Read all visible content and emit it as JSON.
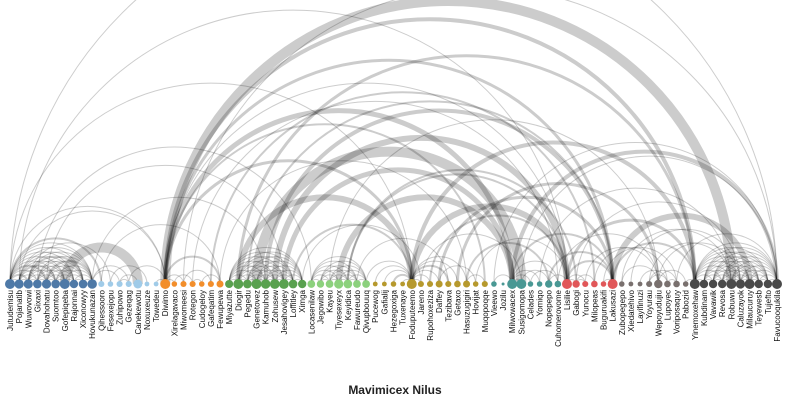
{
  "chart_data": {
    "type": "arc-diagram",
    "title": "Mavimicex Nilus",
    "nodes": [
      {
        "name": "Jutudemisu",
        "group": "g1"
      },
      {
        "name": "Pojanatib",
        "group": "g1"
      },
      {
        "name": "Wuwovowi",
        "group": "g1"
      },
      {
        "name": "Gixaxi",
        "group": "g1"
      },
      {
        "name": "Dovahohatu",
        "group": "g1"
      },
      {
        "name": "Suomtoo",
        "group": "g1"
      },
      {
        "name": "Gofepiqeba",
        "group": "g1"
      },
      {
        "name": "Rajonnai",
        "group": "g1"
      },
      {
        "name": "Xiconowyy",
        "group": "g1"
      },
      {
        "name": "Hovukunazan",
        "group": "g1"
      },
      {
        "name": "Qihessooro",
        "group": "g2"
      },
      {
        "name": "Fesexejopu",
        "group": "g2"
      },
      {
        "name": "Zuhipowo",
        "group": "g2"
      },
      {
        "name": "Gezeqag",
        "group": "g2"
      },
      {
        "name": "Canekewotu",
        "group": "g2"
      },
      {
        "name": "Noxuxeuze",
        "group": "g2"
      },
      {
        "name": "Towedeu",
        "group": "g2"
      },
      {
        "name": "Diwimo",
        "group": "g3"
      },
      {
        "name": "Xirelagavaco",
        "group": "g3"
      },
      {
        "name": "Miwomeesi",
        "group": "g3"
      },
      {
        "name": "Rotegon",
        "group": "g3"
      },
      {
        "name": "Cudogeloy",
        "group": "g3"
      },
      {
        "name": "Gafeqatim",
        "group": "g3"
      },
      {
        "name": "Fewupewa",
        "group": "g3"
      },
      {
        "name": "Miyazutte",
        "group": "g4"
      },
      {
        "name": "Diogir",
        "group": "g4"
      },
      {
        "name": "Pegedu",
        "group": "g4"
      },
      {
        "name": "Genetovez",
        "group": "g4"
      },
      {
        "name": "Kamuhob",
        "group": "g4"
      },
      {
        "name": "Zohusew",
        "group": "g4"
      },
      {
        "name": "Jesahovigey",
        "group": "g4"
      },
      {
        "name": "Loffitley",
        "group": "g4"
      },
      {
        "name": "Ximga",
        "group": "g4"
      },
      {
        "name": "Locasenilaw",
        "group": "g5"
      },
      {
        "name": "Jegowibo",
        "group": "g5"
      },
      {
        "name": "Kayeu",
        "group": "g5"
      },
      {
        "name": "Tiyesexeyx",
        "group": "g5"
      },
      {
        "name": "Keyidica",
        "group": "g5"
      },
      {
        "name": "Fawureudo",
        "group": "g5"
      },
      {
        "name": "Qivupbouuq",
        "group": "g5"
      },
      {
        "name": "Pucewog",
        "group": "g6"
      },
      {
        "name": "Gafialij",
        "group": "g6"
      },
      {
        "name": "Hezegoxiga",
        "group": "g6"
      },
      {
        "name": "Tuxenaye",
        "group": "g6"
      },
      {
        "name": "Foduputeemo",
        "group": "g6"
      },
      {
        "name": "Jareno",
        "group": "g6"
      },
      {
        "name": "Rupohoxeziza",
        "group": "g6"
      },
      {
        "name": "Daffey",
        "group": "g6"
      },
      {
        "name": "Tezibava",
        "group": "g6"
      },
      {
        "name": "Getaxo",
        "group": "g6"
      },
      {
        "name": "Hasuzugigiri",
        "group": "g6"
      },
      {
        "name": "Hovijat",
        "group": "g6"
      },
      {
        "name": "Muqopoqqe",
        "group": "g6"
      },
      {
        "name": "Vieewo",
        "group": "g7"
      },
      {
        "name": "Jozilu",
        "group": "g7"
      },
      {
        "name": "Milwowacex",
        "group": "g7"
      },
      {
        "name": "Susigomopa",
        "group": "g7"
      },
      {
        "name": "Celades",
        "group": "g7"
      },
      {
        "name": "Yomiqo",
        "group": "g7"
      },
      {
        "name": "Nopepepo",
        "group": "g7"
      },
      {
        "name": "Cuhomerovome",
        "group": "g7"
      },
      {
        "name": "Lisilie",
        "group": "g8"
      },
      {
        "name": "Gabogi",
        "group": "g8"
      },
      {
        "name": "Yunocu",
        "group": "g8"
      },
      {
        "name": "Milopeas",
        "group": "g8"
      },
      {
        "name": "Buguruakifi",
        "group": "g8"
      },
      {
        "name": "Lakusazi",
        "group": "g8"
      },
      {
        "name": "Zubopegepo",
        "group": "g9"
      },
      {
        "name": "Xiedatehivo",
        "group": "g9"
      },
      {
        "name": "Layifinuzi",
        "group": "g9"
      },
      {
        "name": "Yoyurau",
        "group": "g9"
      },
      {
        "name": "Wepoyudujiu",
        "group": "g9"
      },
      {
        "name": "Lupoyec",
        "group": "g9"
      },
      {
        "name": "Voriposaquy",
        "group": "g9"
      },
      {
        "name": "Pabozid",
        "group": "g9"
      },
      {
        "name": "Yinemoxehaw",
        "group": "g10"
      },
      {
        "name": "Kubdinam",
        "group": "g10"
      },
      {
        "name": "Vavawik",
        "group": "g10"
      },
      {
        "name": "Revosa",
        "group": "g10"
      },
      {
        "name": "Robuwu",
        "group": "g10"
      },
      {
        "name": "Caluzayok",
        "group": "g10"
      },
      {
        "name": "Milaucuruy",
        "group": "g10"
      },
      {
        "name": "Teyewesb",
        "group": "g10"
      },
      {
        "name": "Tujefto",
        "group": "g10"
      },
      {
        "name": "Favucooqukila",
        "group": "g10"
      }
    ],
    "group_colors": {
      "g1": "#4e79a7",
      "g2": "#a0cbe8",
      "g3": "#f28e2b",
      "g4": "#59a14f",
      "g5": "#8cd17d",
      "g6": "#b6992d",
      "g7": "#499894",
      "g8": "#e15759",
      "g9": "#79706e",
      "g10": "#4a4a4a"
    },
    "links": [
      [
        0,
        1,
        1
      ],
      [
        0,
        2,
        2
      ],
      [
        0,
        3,
        1
      ],
      [
        0,
        4,
        2
      ],
      [
        0,
        5,
        1
      ],
      [
        0,
        6,
        1
      ],
      [
        0,
        7,
        1
      ],
      [
        0,
        8,
        1
      ],
      [
        0,
        9,
        1
      ],
      [
        1,
        2,
        1
      ],
      [
        1,
        3,
        1
      ],
      [
        1,
        4,
        1
      ],
      [
        1,
        5,
        2
      ],
      [
        1,
        6,
        1
      ],
      [
        1,
        7,
        1
      ],
      [
        1,
        8,
        1
      ],
      [
        1,
        9,
        1
      ],
      [
        2,
        3,
        1
      ],
      [
        2,
        4,
        1
      ],
      [
        2,
        5,
        1
      ],
      [
        2,
        6,
        1
      ],
      [
        2,
        7,
        1
      ],
      [
        2,
        8,
        2
      ],
      [
        2,
        9,
        1
      ],
      [
        3,
        4,
        1
      ],
      [
        3,
        5,
        1
      ],
      [
        3,
        6,
        1
      ],
      [
        3,
        7,
        1
      ],
      [
        3,
        8,
        1
      ],
      [
        3,
        9,
        1
      ],
      [
        4,
        5,
        1
      ],
      [
        4,
        6,
        1
      ],
      [
        4,
        7,
        1
      ],
      [
        4,
        8,
        1
      ],
      [
        4,
        9,
        2
      ],
      [
        5,
        6,
        1
      ],
      [
        5,
        7,
        1
      ],
      [
        5,
        8,
        1
      ],
      [
        5,
        9,
        1
      ],
      [
        6,
        7,
        1
      ],
      [
        6,
        8,
        1
      ],
      [
        6,
        9,
        1
      ],
      [
        7,
        8,
        1
      ],
      [
        7,
        9,
        1
      ],
      [
        8,
        9,
        1
      ],
      [
        0,
        17,
        1
      ],
      [
        1,
        17,
        1
      ],
      [
        6,
        14,
        10
      ],
      [
        0,
        10,
        2
      ],
      [
        2,
        11,
        1
      ],
      [
        9,
        12,
        1
      ],
      [
        9,
        13,
        1
      ],
      [
        12,
        13,
        1
      ],
      [
        12,
        14,
        1
      ],
      [
        11,
        15,
        1
      ],
      [
        13,
        17,
        1
      ],
      [
        10,
        23,
        1
      ],
      [
        17,
        18,
        1
      ],
      [
        17,
        19,
        1
      ],
      [
        18,
        20,
        1
      ],
      [
        19,
        22,
        1
      ],
      [
        20,
        21,
        1
      ],
      [
        21,
        23,
        1
      ],
      [
        17,
        23,
        2
      ],
      [
        16,
        17,
        1
      ],
      [
        24,
        25,
        1
      ],
      [
        24,
        26,
        1
      ],
      [
        24,
        27,
        1
      ],
      [
        24,
        28,
        1
      ],
      [
        24,
        29,
        1
      ],
      [
        24,
        30,
        1
      ],
      [
        24,
        31,
        1
      ],
      [
        24,
        32,
        1
      ],
      [
        25,
        26,
        1
      ],
      [
        25,
        27,
        1
      ],
      [
        25,
        28,
        1
      ],
      [
        25,
        29,
        1
      ],
      [
        25,
        30,
        1
      ],
      [
        25,
        31,
        1
      ],
      [
        25,
        32,
        1
      ],
      [
        26,
        27,
        1
      ],
      [
        26,
        28,
        1
      ],
      [
        26,
        29,
        1
      ],
      [
        26,
        30,
        1
      ],
      [
        26,
        31,
        1
      ],
      [
        26,
        32,
        1
      ],
      [
        27,
        28,
        1
      ],
      [
        27,
        29,
        1
      ],
      [
        27,
        30,
        1
      ],
      [
        27,
        31,
        1
      ],
      [
        27,
        32,
        1
      ],
      [
        28,
        29,
        1
      ],
      [
        28,
        30,
        1
      ],
      [
        28,
        31,
        1
      ],
      [
        28,
        32,
        1
      ],
      [
        29,
        30,
        1
      ],
      [
        29,
        31,
        1
      ],
      [
        29,
        32,
        1
      ],
      [
        30,
        31,
        1
      ],
      [
        30,
        32,
        1
      ],
      [
        31,
        32,
        1
      ],
      [
        33,
        34,
        1
      ],
      [
        33,
        35,
        1
      ],
      [
        33,
        36,
        1
      ],
      [
        33,
        37,
        1
      ],
      [
        33,
        38,
        1
      ],
      [
        33,
        39,
        1
      ],
      [
        34,
        35,
        1
      ],
      [
        34,
        36,
        1
      ],
      [
        34,
        37,
        1
      ],
      [
        34,
        38,
        1
      ],
      [
        34,
        39,
        1
      ],
      [
        35,
        36,
        1
      ],
      [
        35,
        37,
        1
      ],
      [
        35,
        38,
        1
      ],
      [
        35,
        39,
        1
      ],
      [
        36,
        37,
        1
      ],
      [
        36,
        38,
        1
      ],
      [
        36,
        39,
        1
      ],
      [
        37,
        38,
        1
      ],
      [
        37,
        39,
        1
      ],
      [
        38,
        39,
        1
      ],
      [
        40,
        44,
        1
      ],
      [
        41,
        44,
        1
      ],
      [
        42,
        44,
        2
      ],
      [
        43,
        44,
        1
      ],
      [
        44,
        45,
        1
      ],
      [
        44,
        46,
        1
      ],
      [
        44,
        47,
        1
      ],
      [
        44,
        48,
        2
      ],
      [
        44,
        49,
        1
      ],
      [
        44,
        50,
        1
      ],
      [
        47,
        51,
        1
      ],
      [
        50,
        52,
        1
      ],
      [
        53,
        55,
        1
      ],
      [
        55,
        56,
        2
      ],
      [
        55,
        57,
        1
      ],
      [
        55,
        58,
        1
      ],
      [
        56,
        59,
        1
      ],
      [
        55,
        60,
        1
      ],
      [
        57,
        60,
        1
      ],
      [
        59,
        61,
        1
      ],
      [
        61,
        62,
        1
      ],
      [
        61,
        63,
        1
      ],
      [
        62,
        63,
        1
      ],
      [
        62,
        64,
        1
      ],
      [
        65,
        66,
        1
      ],
      [
        61,
        66,
        2
      ],
      [
        67,
        71,
        1
      ],
      [
        69,
        72,
        1
      ],
      [
        70,
        72,
        1
      ],
      [
        70,
        73,
        1
      ],
      [
        71,
        74,
        1
      ],
      [
        72,
        73,
        1
      ],
      [
        75,
        76,
        1
      ],
      [
        75,
        77,
        1
      ],
      [
        75,
        78,
        1
      ],
      [
        75,
        79,
        1
      ],
      [
        75,
        80,
        1
      ],
      [
        75,
        81,
        1
      ],
      [
        75,
        82,
        1
      ],
      [
        75,
        83,
        1
      ],
      [
        75,
        84,
        1
      ],
      [
        76,
        77,
        1
      ],
      [
        76,
        78,
        1
      ],
      [
        76,
        79,
        1
      ],
      [
        76,
        80,
        1
      ],
      [
        76,
        81,
        1
      ],
      [
        76,
        82,
        1
      ],
      [
        76,
        83,
        1
      ],
      [
        76,
        84,
        1
      ],
      [
        77,
        78,
        1
      ],
      [
        77,
        79,
        1
      ],
      [
        77,
        80,
        1
      ],
      [
        77,
        81,
        1
      ],
      [
        77,
        82,
        1
      ],
      [
        77,
        83,
        1
      ],
      [
        77,
        84,
        1
      ],
      [
        78,
        79,
        1
      ],
      [
        78,
        80,
        1
      ],
      [
        78,
        81,
        1
      ],
      [
        78,
        82,
        1
      ],
      [
        78,
        83,
        1
      ],
      [
        78,
        84,
        1
      ],
      [
        79,
        80,
        1
      ],
      [
        79,
        81,
        1
      ],
      [
        79,
        82,
        1
      ],
      [
        79,
        83,
        1
      ],
      [
        79,
        84,
        1
      ],
      [
        80,
        81,
        1
      ],
      [
        80,
        82,
        1
      ],
      [
        80,
        83,
        1
      ],
      [
        80,
        84,
        1
      ],
      [
        81,
        82,
        1
      ],
      [
        81,
        83,
        1
      ],
      [
        81,
        84,
        1
      ],
      [
        82,
        83,
        1
      ],
      [
        82,
        84,
        1
      ],
      [
        83,
        84,
        1
      ],
      [
        0,
        84,
        1
      ],
      [
        1,
        61,
        1
      ],
      [
        0,
        44,
        1
      ],
      [
        3,
        33,
        1
      ],
      [
        9,
        28,
        1
      ],
      [
        4,
        30,
        1
      ],
      [
        17,
        75,
        4
      ],
      [
        17,
        79,
        10
      ],
      [
        17,
        66,
        3
      ],
      [
        17,
        55,
        5
      ],
      [
        17,
        44,
        3
      ],
      [
        17,
        52,
        2
      ],
      [
        17,
        61,
        1
      ],
      [
        19,
        84,
        1
      ],
      [
        20,
        60,
        1
      ],
      [
        22,
        64,
        2
      ],
      [
        23,
        50,
        1
      ],
      [
        25,
        75,
        3
      ],
      [
        26,
        66,
        2
      ],
      [
        27,
        56,
        10
      ],
      [
        28,
        66,
        4
      ],
      [
        29,
        61,
        6
      ],
      [
        30,
        55,
        5
      ],
      [
        31,
        44,
        2
      ],
      [
        32,
        45,
        1
      ],
      [
        25,
        44,
        6
      ],
      [
        35,
        71,
        1
      ],
      [
        36,
        55,
        6
      ],
      [
        37,
        61,
        2
      ],
      [
        38,
        48,
        1
      ],
      [
        39,
        44,
        1
      ],
      [
        37,
        62,
        2
      ],
      [
        44,
        61,
        6
      ],
      [
        44,
        75,
        4
      ],
      [
        46,
        61,
        2
      ],
      [
        47,
        66,
        3
      ],
      [
        49,
        71,
        3
      ],
      [
        50,
        59,
        2
      ],
      [
        51,
        61,
        1
      ],
      [
        45,
        56,
        1
      ],
      [
        53,
        84,
        1
      ],
      [
        55,
        84,
        4
      ],
      [
        56,
        84,
        1
      ],
      [
        58,
        79,
        1
      ],
      [
        59,
        66,
        2
      ],
      [
        60,
        71,
        1
      ],
      [
        55,
        66,
        2
      ],
      [
        61,
        75,
        3
      ],
      [
        62,
        80,
        1
      ],
      [
        63,
        71,
        1
      ],
      [
        64,
        72,
        1
      ],
      [
        66,
        75,
        2
      ],
      [
        66,
        81,
        6
      ],
      [
        65,
        73,
        1
      ],
      [
        67,
        79,
        1
      ],
      [
        68,
        80,
        1
      ],
      [
        71,
        80,
        1
      ],
      [
        73,
        84,
        1
      ],
      [
        74,
        75,
        1
      ],
      [
        70,
        79,
        1
      ]
    ]
  }
}
